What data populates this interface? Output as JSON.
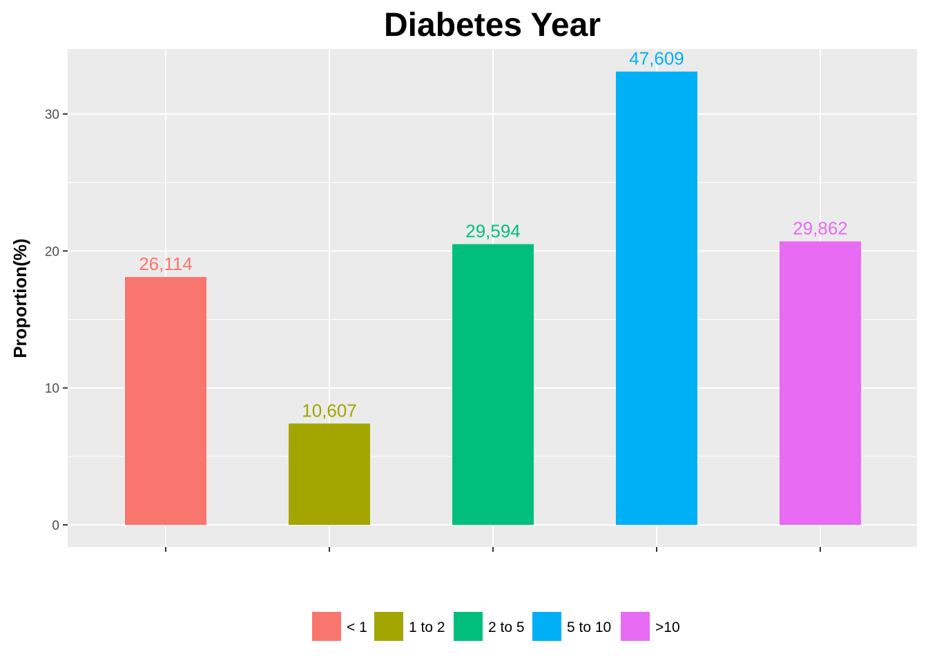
{
  "chart_data": {
    "type": "bar",
    "title": "Diabetes Year",
    "xlabel": "",
    "ylabel": "Proportion(%)",
    "ylim": [
      0,
      34.5
    ],
    "yticks": [
      0,
      10,
      20,
      30
    ],
    "grid": true,
    "legend_position": "bottom",
    "categories": [
      "< 1",
      "1 to 2",
      "2 to 5",
      "5 to 10",
      ">10"
    ],
    "values": [
      18.1,
      7.4,
      20.5,
      33.1,
      20.7
    ],
    "data_labels": [
      "26,114",
      "10,607",
      "29,594",
      "47,609",
      "29,862"
    ],
    "colors": [
      "#F8766D",
      "#A3A500",
      "#00BF7D",
      "#00B0F6",
      "#E76BF3"
    ],
    "panel_background": "#EBEBEB",
    "grid_color": "#FFFFFF"
  }
}
